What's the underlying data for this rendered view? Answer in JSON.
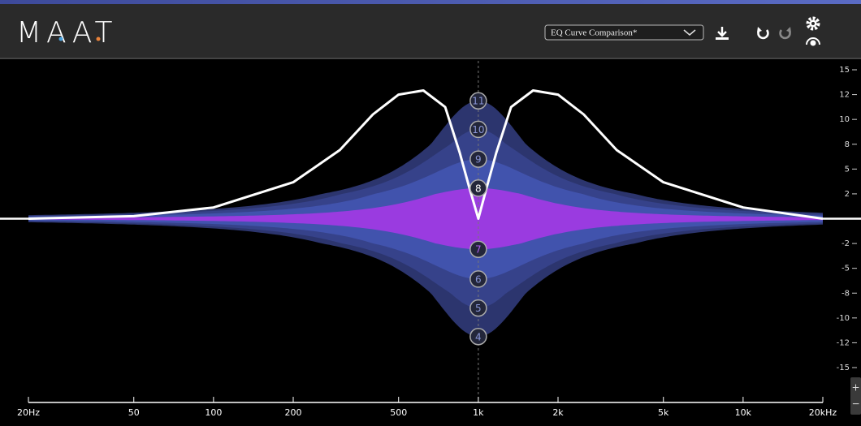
{
  "header": {
    "logo": "MAAT",
    "preset": "EQ Curve Comparison*"
  },
  "plot": {
    "xlim": [
      20,
      20000
    ],
    "log_x": true,
    "xticks": [
      {
        "value": 20,
        "label": "20Hz"
      },
      50,
      100,
      200,
      500,
      {
        "value": 1000,
        "label": "1k"
      },
      {
        "value": 2000,
        "label": "2k"
      },
      {
        "value": 5000,
        "label": "5k"
      },
      {
        "value": 10000,
        "label": "10k"
      },
      {
        "value": 20000,
        "label": "20kHz"
      }
    ],
    "yticks": [
      15,
      12,
      10,
      8,
      5,
      2,
      -2,
      -5,
      -8,
      -10,
      -12,
      -15
    ],
    "center_freq": 1000,
    "bandwidth_octaves": 0.9,
    "nodes": [
      {
        "label": "11",
        "gain": 11.5,
        "color": "#2c356e"
      },
      {
        "label": "10",
        "gain": 9.2,
        "color": "#36428a"
      },
      {
        "label": "9",
        "gain": 6.2,
        "color": "#4153ad"
      },
      {
        "label": "8",
        "gain": 2.7,
        "color": "#9a3be0"
      },
      {
        "label": "4",
        "gain": -11.5,
        "color": "#2c356e"
      },
      {
        "label": "5",
        "gain": -9.2,
        "color": "#36428a"
      },
      {
        "label": "6",
        "gain": -6.3,
        "color": "#4153ad"
      },
      {
        "label": "7",
        "gain": -2.7,
        "color": "#9a3be0"
      }
    ],
    "curve": {
      "color": "#ffffff",
      "x": [
        20,
        50,
        100,
        200,
        300,
        400,
        500,
        620,
        750,
        850,
        920,
        1000,
        1080,
        1170,
        1330,
        1610,
        2000,
        2500,
        3330,
        5000,
        10000,
        20000
      ],
      "y": [
        0,
        0.2,
        0.9,
        3.4,
        7.3,
        10.4,
        12,
        12.5,
        11,
        7,
        3,
        0,
        3,
        7,
        11,
        12.5,
        12,
        10.4,
        7.3,
        3.4,
        0.9,
        0
      ]
    }
  },
  "zoom": [
    "+",
    "−"
  ]
}
